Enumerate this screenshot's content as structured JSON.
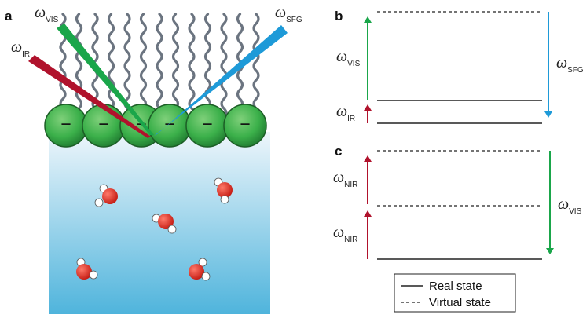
{
  "panels": {
    "a": {
      "label": "a",
      "beams": {
        "vis": {
          "symbol": "ω",
          "sub": "VIS"
        },
        "ir": {
          "symbol": "ω",
          "sub": "IR"
        },
        "sfg": {
          "symbol": "ω",
          "sub": "SFG"
        }
      },
      "headgroup_charge": "−"
    },
    "b": {
      "label": "b",
      "vis": {
        "symbol": "ω",
        "sub": "VIS"
      },
      "ir": {
        "symbol": "ω",
        "sub": "IR"
      },
      "sfg": {
        "symbol": "ω",
        "sub": "SFG"
      }
    },
    "c": {
      "label": "c",
      "nir_top": {
        "symbol": "ω",
        "sub": "NIR"
      },
      "nir_bottom": {
        "symbol": "ω",
        "sub": "NIR"
      },
      "vis": {
        "symbol": "ω",
        "sub": "VIS"
      }
    }
  },
  "legend": {
    "real": "Real state",
    "virtual": "Virtual state"
  },
  "colors": {
    "vis_green": "#1aa64a",
    "ir_red": "#b0122c",
    "sfg_blue": "#1e9ad8",
    "headgroup": "#3bb04a",
    "chain": "#6b7480",
    "water_top": "#e4f1f8",
    "water_bottom": "#4fb4dc",
    "oxygen": "#d8261f"
  }
}
